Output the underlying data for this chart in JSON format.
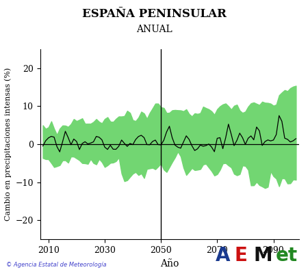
{
  "title": "ESPAÑA PENINSULAR",
  "subtitle": "ANUAL",
  "xlabel": "Año",
  "ylabel": "Cambio en precipitaciones intensas (%)",
  "xlim": [
    2007,
    2099
  ],
  "ylim": [
    -25,
    25
  ],
  "yticks": [
    -20,
    -10,
    0,
    10,
    20
  ],
  "xticks": [
    2010,
    2030,
    2050,
    2070,
    2090
  ],
  "vline_x": 2050,
  "hline_y": 0,
  "band_color": "#72d672",
  "band_alpha": 1.0,
  "line_color": "#000000",
  "line_width": 0.9,
  "copyright_text": "© Agencia Estatal de Meteorología",
  "copyright_color": "#4444cc",
  "background_color": "#ffffff",
  "seed": 12345,
  "x_start": 2008,
  "x_end": 2098
}
